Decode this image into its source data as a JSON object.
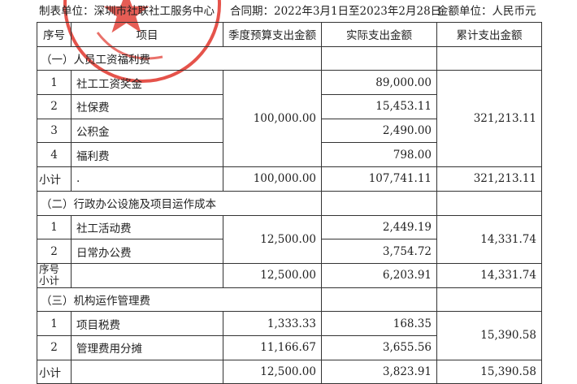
{
  "header": {
    "unit": "制表单位：深圳市社联社工服务中心",
    "contract_period": "合同期：2022年3月1日至2023年2月28日",
    "currency": "金额单位：人民币元"
  },
  "columns": [
    "序号",
    "项目",
    "季度预算支出金额",
    "实际支出金额",
    "累计支出金额"
  ],
  "sections": [
    {
      "title": "（一）人员工资福利费",
      "budget": "100,000.00",
      "cumulative": "321,213.11",
      "items": [
        {
          "no": "1",
          "name": "社工工资奖金",
          "actual": "89,000.00"
        },
        {
          "no": "2",
          "name": "社保费",
          "actual": "15,453.11"
        },
        {
          "no": "3",
          "name": "公积金",
          "actual": "2,490.00"
        },
        {
          "no": "4",
          "name": "福利费",
          "actual": "798.00"
        }
      ],
      "subtotal": {
        "label": "小计",
        "note": ".",
        "budget": "100,000.00",
        "actual": "107,741.11",
        "cumulative": "321,213.11"
      }
    },
    {
      "title": "（二）行政办公设施及项目运作成本",
      "budget": "12,500.00",
      "cumulative": "14,331.74",
      "items": [
        {
          "no": "1",
          "name": "社工活动费",
          "actual": "2,449.19"
        },
        {
          "no": "2",
          "name": "日常办公费",
          "actual": "3,754.72"
        }
      ],
      "subtotal": {
        "label": "序号",
        "budget": "12,500.00",
        "actual": "6,203.91",
        "cumulative": "14,331.74"
      },
      "extra_label": "小计"
    },
    {
      "title": "（三）机构运作管理费",
      "cumulative": "15,390.58",
      "items": [
        {
          "no": "1",
          "name": "项目税费",
          "budget": "1,333.33",
          "actual": "168.35"
        },
        {
          "no": "2",
          "name": "管理费用分摊",
          "budget": "11,166.67",
          "actual": "3,655.56"
        }
      ],
      "subtotal": {
        "label": "小计",
        "budget": "12,500.00",
        "actual": "3,823.91",
        "cumulative": "15,390.58"
      }
    }
  ],
  "colors": {
    "seal": "#e0352b",
    "text": "#222222"
  }
}
